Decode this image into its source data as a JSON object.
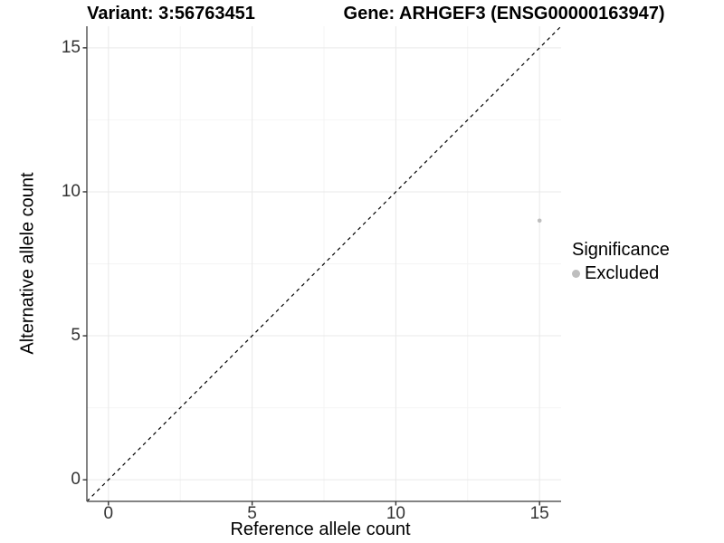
{
  "chart_data": {
    "type": "scatter",
    "title_variant": "Variant: 3:56763451",
    "title_gene": "Gene: ARHGEF3 (ENSG00000163947)",
    "xlabel": "Reference allele count",
    "ylabel": "Alternative allele count",
    "xlim": [
      -0.75,
      15.75
    ],
    "ylim": [
      -0.75,
      15.75
    ],
    "xticks": [
      0,
      5,
      10,
      15
    ],
    "yticks": [
      0,
      5,
      10,
      15
    ],
    "x_minor_ticks": [
      2.5,
      7.5,
      12.5
    ],
    "y_minor_ticks": [
      2.5,
      7.5,
      12.5
    ],
    "grid": "on",
    "reference_line": {
      "type": "abline",
      "slope": 1,
      "intercept": 0,
      "style": "dashed",
      "color": "#000000"
    },
    "points": [
      {
        "x": 15,
        "y": 9,
        "significance": "Excluded"
      }
    ],
    "legend": {
      "title": "Significance",
      "position": "right",
      "entries": [
        {
          "label": "Excluded",
          "color": "#bebebe"
        }
      ]
    },
    "colors": {
      "point": "#bebebe",
      "grid_major": "#e9e9e9",
      "grid_minor": "#f4f4f4",
      "axis_line": "#5a5a5a",
      "tick_mark": "#333333"
    }
  }
}
